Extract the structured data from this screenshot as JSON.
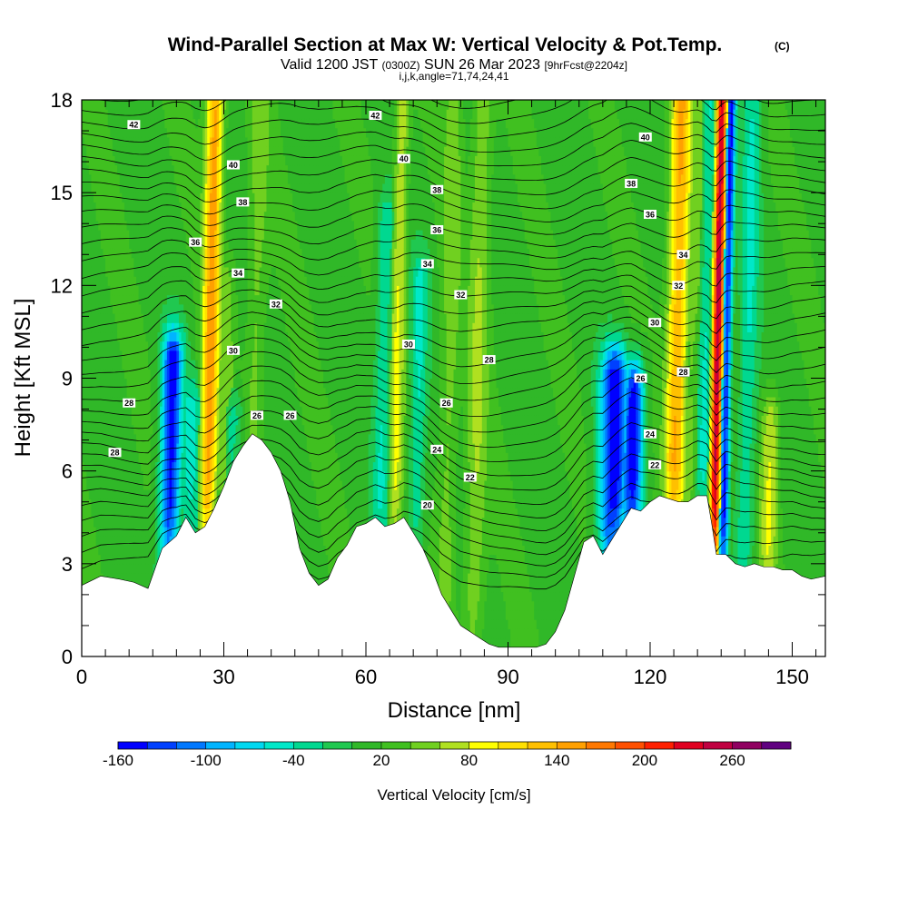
{
  "chart_data": {
    "type": "heatmap",
    "title": "Wind-Parallel Section at Max W: Vertical Velocity & Pot.Temp.",
    "title_mark": "(C)",
    "subtitle": {
      "valid_prefix": "Valid 1200 JST",
      "utc": "(0300Z)",
      "date": "SUN 26 Mar 2023",
      "forecast": "[9hrFcst@2204z]"
    },
    "subtitle2": "i,j,k,angle=71,74,24,41",
    "xlabel": "Distance [nm]",
    "ylabel": "Height [Kft MSL]",
    "xlim": [
      0,
      157
    ],
    "ylim": [
      0,
      18
    ],
    "xticks": [
      0,
      30,
      60,
      90,
      120,
      150
    ],
    "yticks": [
      0,
      3,
      6,
      9,
      12,
      15,
      18
    ],
    "colorbar": {
      "label": "Vertical Velocity [cm/s]",
      "tick_labels": [
        "-160",
        "-100",
        "-40",
        "20",
        "80",
        "140",
        "200",
        "260"
      ],
      "tick_values": [
        -160,
        -100,
        -40,
        20,
        80,
        140,
        200,
        260
      ],
      "min": -160,
      "max": 300,
      "colors": [
        "#0000ff",
        "#0040ff",
        "#0078ff",
        "#00b4ff",
        "#00d8f0",
        "#00e8c8",
        "#00d890",
        "#20c850",
        "#30b828",
        "#40c020",
        "#70d020",
        "#b0e020",
        "#ffff00",
        "#ffe000",
        "#ffc000",
        "#ffa000",
        "#ff7800",
        "#ff5000",
        "#ff2000",
        "#e00020",
        "#c00040",
        "#900060",
        "#600080"
      ]
    },
    "terrain": {
      "x": [
        0,
        4,
        8,
        11,
        14,
        17,
        20,
        22,
        24,
        26,
        28,
        30,
        32,
        34,
        36,
        38,
        40,
        42,
        44,
        46,
        48,
        50,
        52,
        54,
        56,
        58,
        60,
        62,
        64,
        66,
        68,
        70,
        72,
        74,
        76,
        78,
        80,
        82,
        84,
        86,
        88,
        90,
        92,
        94,
        96,
        98,
        100,
        102,
        104,
        106,
        108,
        110,
        112,
        114,
        116,
        118,
        120,
        122,
        124,
        126,
        128,
        130,
        132,
        133,
        134,
        136,
        138,
        140,
        142,
        144,
        146,
        148,
        150,
        152,
        154,
        157
      ],
      "height_kft": [
        2.3,
        2.6,
        2.5,
        2.4,
        2.2,
        3.5,
        3.9,
        4.5,
        4.0,
        4.2,
        4.8,
        5.5,
        6.3,
        6.8,
        7.2,
        7.0,
        6.6,
        6.0,
        5.0,
        3.5,
        2.7,
        2.3,
        2.5,
        3.2,
        3.6,
        4.2,
        4.3,
        4.5,
        4.2,
        4.3,
        4.5,
        4.0,
        3.5,
        2.8,
        2.0,
        1.5,
        1.0,
        0.8,
        0.6,
        0.4,
        0.3,
        0.3,
        0.3,
        0.3,
        0.3,
        0.4,
        0.8,
        1.5,
        2.6,
        3.7,
        3.9,
        3.3,
        3.8,
        4.3,
        4.8,
        4.7,
        5.0,
        5.2,
        5.1,
        5.0,
        5.0,
        5.2,
        5.2,
        4.3,
        3.3,
        3.3,
        3.0,
        2.9,
        3.0,
        2.9,
        2.9,
        2.8,
        2.8,
        2.6,
        2.5,
        2.6
      ]
    },
    "vertical_velocity_plumes": [
      {
        "x": 18.5,
        "w": -150,
        "ztop": 9.5,
        "width_nm": 2.2
      },
      {
        "x": 22.5,
        "w": -40,
        "ztop": 8.0,
        "width_nm": 2.5
      },
      {
        "x": 26.5,
        "w": 150,
        "ztop": 18.0,
        "width_nm": 1.8
      },
      {
        "x": 29.5,
        "w": 50,
        "ztop": 12.0,
        "width_nm": 2.0
      },
      {
        "x": 31.5,
        "w": -40,
        "ztop": 7.5,
        "width_nm": 2.0
      },
      {
        "x": 36.0,
        "w": 50,
        "ztop": 18.0,
        "width_nm": 2.0
      },
      {
        "x": 63.0,
        "w": -40,
        "ztop": 14.0,
        "width_nm": 1.8
      },
      {
        "x": 66.0,
        "w": 80,
        "ztop": 18.0,
        "width_nm": 1.5
      },
      {
        "x": 70.5,
        "w": -40,
        "ztop": 12.0,
        "width_nm": 1.8
      },
      {
        "x": 77.0,
        "w": 50,
        "ztop": 18.0,
        "width_nm": 2.0
      },
      {
        "x": 83.0,
        "w": 60,
        "ztop": 18.0,
        "width_nm": 2.2
      },
      {
        "x": 112.0,
        "w": -150,
        "ztop": 9.0,
        "width_nm": 3.0
      },
      {
        "x": 116.0,
        "w": -160,
        "ztop": 8.5,
        "width_nm": 2.2
      },
      {
        "x": 125.0,
        "w": 140,
        "ztop": 18.0,
        "width_nm": 2.2
      },
      {
        "x": 128.0,
        "w": 50,
        "ztop": 18.0,
        "width_nm": 2.0
      },
      {
        "x": 131.0,
        "w": -40,
        "ztop": 18.0,
        "width_nm": 1.5
      },
      {
        "x": 133.5,
        "w": 250,
        "ztop": 18.0,
        "width_nm": 1.1
      },
      {
        "x": 135.5,
        "w": -140,
        "ztop": 18.0,
        "width_nm": 1.0
      },
      {
        "x": 140.0,
        "w": -40,
        "ztop": 18.0,
        "width_nm": 2.0
      },
      {
        "x": 145.0,
        "w": 80,
        "ztop": 7.5,
        "width_nm": 1.8
      }
    ],
    "theta_contour_labels": [
      {
        "text": "42",
        "x": 11,
        "y": 17.2
      },
      {
        "text": "42",
        "x": 62,
        "y": 17.5
      },
      {
        "text": "40",
        "x": 32,
        "y": 15.9
      },
      {
        "text": "40",
        "x": 68,
        "y": 16.1
      },
      {
        "text": "40",
        "x": 119,
        "y": 16.8
      },
      {
        "text": "38",
        "x": 34,
        "y": 14.7
      },
      {
        "text": "38",
        "x": 75,
        "y": 15.1
      },
      {
        "text": "38",
        "x": 116,
        "y": 15.3
      },
      {
        "text": "36",
        "x": 24,
        "y": 13.4
      },
      {
        "text": "36",
        "x": 75,
        "y": 13.8
      },
      {
        "text": "36",
        "x": 120,
        "y": 14.3
      },
      {
        "text": "34",
        "x": 33,
        "y": 12.4
      },
      {
        "text": "34",
        "x": 73,
        "y": 12.7
      },
      {
        "text": "34",
        "x": 127,
        "y": 13.0
      },
      {
        "text": "32",
        "x": 41,
        "y": 11.4
      },
      {
        "text": "32",
        "x": 80,
        "y": 11.7
      },
      {
        "text": "32",
        "x": 126,
        "y": 12.0
      },
      {
        "text": "30",
        "x": 32,
        "y": 9.9
      },
      {
        "text": "30",
        "x": 69,
        "y": 10.1
      },
      {
        "text": "30",
        "x": 121,
        "y": 10.8
      },
      {
        "text": "28",
        "x": 10,
        "y": 8.2
      },
      {
        "text": "28",
        "x": 86,
        "y": 9.6
      },
      {
        "text": "28",
        "x": 127,
        "y": 9.2
      },
      {
        "text": "28",
        "x": 7,
        "y": 6.6
      },
      {
        "text": "26",
        "x": 37,
        "y": 7.8
      },
      {
        "text": "26",
        "x": 44,
        "y": 7.8
      },
      {
        "text": "26",
        "x": 77,
        "y": 8.2
      },
      {
        "text": "26",
        "x": 118,
        "y": 9.0
      },
      {
        "text": "24",
        "x": 75,
        "y": 6.7
      },
      {
        "text": "24",
        "x": 120,
        "y": 7.2
      },
      {
        "text": "22",
        "x": 82,
        "y": 5.8
      },
      {
        "text": "22",
        "x": 121,
        "y": 6.2
      },
      {
        "text": "20",
        "x": 73,
        "y": 4.9
      }
    ]
  }
}
